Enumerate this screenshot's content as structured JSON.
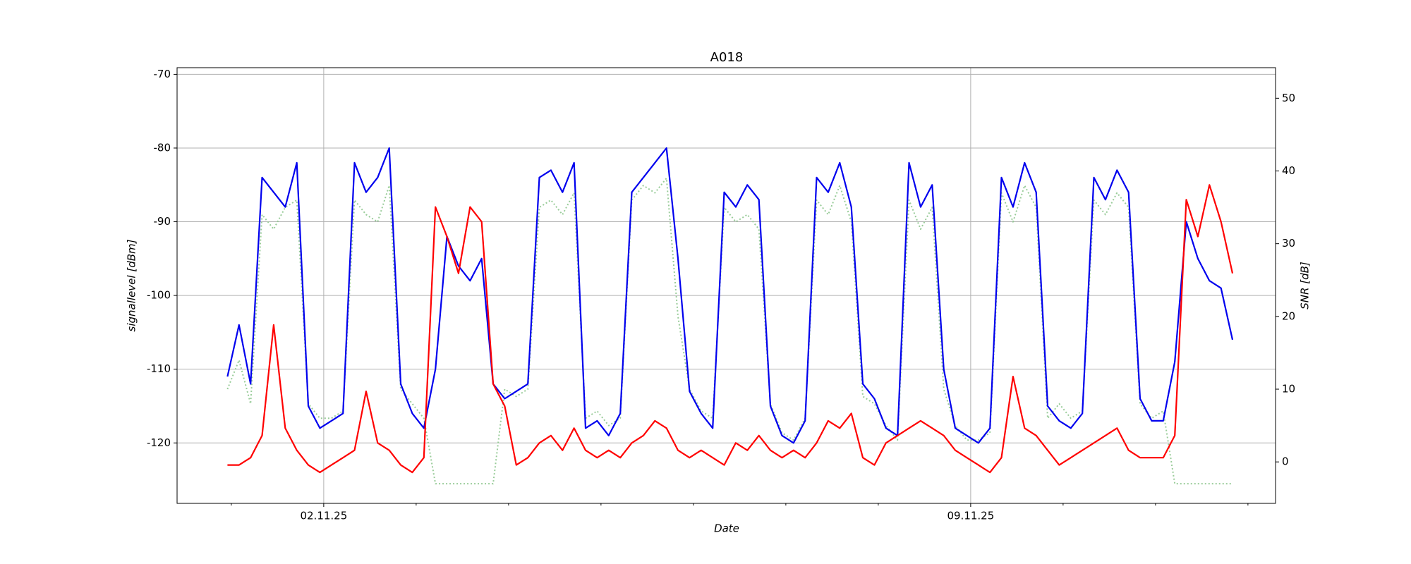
{
  "chart_data": {
    "type": "line",
    "title": "A018",
    "x_label": "Date",
    "y_label": "signallevel [dBm]",
    "y2_label": "SNR [dB]",
    "x": [
      "2025-10-31 23:00",
      "2025-11-01 02:00",
      "2025-11-01 05:00",
      "2025-11-01 08:00",
      "2025-11-01 11:00",
      "2025-11-01 14:00",
      "2025-11-01 17:00",
      "2025-11-01 20:00",
      "2025-11-01 23:00",
      "2025-11-02 02:00",
      "2025-11-02 05:00",
      "2025-11-02 08:00",
      "2025-11-02 11:00",
      "2025-11-02 14:00",
      "2025-11-02 17:00",
      "2025-11-02 20:00",
      "2025-11-02 23:00",
      "2025-11-03 02:00",
      "2025-11-03 05:00",
      "2025-11-03 08:00",
      "2025-11-03 11:00",
      "2025-11-03 14:00",
      "2025-11-03 17:00",
      "2025-11-03 20:00",
      "2025-11-03 23:00",
      "2025-11-04 02:00",
      "2025-11-04 05:00",
      "2025-11-04 08:00",
      "2025-11-04 11:00",
      "2025-11-04 14:00",
      "2025-11-04 17:00",
      "2025-11-04 20:00",
      "2025-11-04 23:00",
      "2025-11-05 02:00",
      "2025-11-05 05:00",
      "2025-11-05 08:00",
      "2025-11-05 11:00",
      "2025-11-05 14:00",
      "2025-11-05 17:00",
      "2025-11-05 20:00",
      "2025-11-05 23:00",
      "2025-11-06 02:00",
      "2025-11-06 05:00",
      "2025-11-06 08:00",
      "2025-11-06 11:00",
      "2025-11-06 14:00",
      "2025-11-06 17:00",
      "2025-11-06 20:00",
      "2025-11-06 23:00",
      "2025-11-07 02:00",
      "2025-11-07 05:00",
      "2025-11-07 08:00",
      "2025-11-07 11:00",
      "2025-11-07 14:00",
      "2025-11-07 17:00",
      "2025-11-07 20:00",
      "2025-11-07 23:00",
      "2025-11-08 02:00",
      "2025-11-08 05:00",
      "2025-11-08 08:00",
      "2025-11-08 11:00",
      "2025-11-08 14:00",
      "2025-11-08 17:00",
      "2025-11-08 20:00",
      "2025-11-08 23:00",
      "2025-11-09 02:00",
      "2025-11-09 05:00",
      "2025-11-09 08:00",
      "2025-11-09 11:00",
      "2025-11-09 14:00",
      "2025-11-09 17:00",
      "2025-11-09 20:00",
      "2025-11-09 23:00",
      "2025-11-10 02:00",
      "2025-11-10 05:00",
      "2025-11-10 08:00",
      "2025-11-10 11:00",
      "2025-11-10 14:00",
      "2025-11-10 17:00",
      "2025-11-10 20:00",
      "2025-11-10 23:00",
      "2025-11-11 02:00",
      "2025-11-11 05:00",
      "2025-11-11 08:00",
      "2025-11-11 11:00",
      "2025-11-11 14:00",
      "2025-11-11 17:00",
      "2025-11-11 20:00"
    ],
    "series": [
      {
        "color": "#99cc99",
        "style": "dotted",
        "axis": "y2",
        "values": [
          10,
          14,
          8,
          34,
          32,
          35,
          36,
          8,
          6,
          6,
          7,
          36,
          34,
          33,
          38,
          10,
          8,
          6,
          -3,
          -3,
          -3,
          -3,
          -3,
          -3,
          10,
          9,
          10,
          35,
          36,
          34,
          37,
          6,
          7,
          5,
          6,
          36,
          38,
          37,
          39,
          20,
          10,
          7,
          6,
          35,
          33,
          34,
          32,
          8,
          4,
          3,
          6,
          36,
          34,
          38,
          33,
          9,
          8,
          5,
          3,
          36,
          32,
          35,
          10,
          5,
          3,
          3,
          4,
          37,
          33,
          38,
          35,
          6,
          8,
          6,
          7,
          36,
          34,
          37,
          35,
          8,
          6,
          7,
          -3,
          -3,
          -3,
          -3,
          -3,
          -3
        ]
      },
      {
        "color": "#0000ee",
        "style": "solid",
        "values": [
          -111,
          -104,
          -112,
          -84,
          -86,
          -88,
          -82,
          -115,
          -118,
          -117,
          -116,
          -82,
          -86,
          -84,
          -80,
          -112,
          -116,
          -118,
          -110,
          -92,
          -96,
          -98,
          -95,
          -112,
          -114,
          -113,
          -112,
          -84,
          -83,
          -86,
          -82,
          -118,
          -117,
          -119,
          -116,
          -86,
          -84,
          -82,
          -80,
          -95,
          -113,
          -116,
          -118,
          -86,
          -88,
          -85,
          -87,
          -115,
          -119,
          -120,
          -117,
          -84,
          -86,
          -82,
          -88,
          -112,
          -114,
          -118,
          -119,
          -82,
          -88,
          -85,
          -110,
          -118,
          -119,
          -120,
          -118,
          -84,
          -88,
          -82,
          -86,
          -115,
          -117,
          -118,
          -116,
          -84,
          -87,
          -83,
          -86,
          -114,
          -117,
          -117,
          -109,
          -90,
          -95,
          -98,
          -99,
          -106
        ]
      },
      {
        "color": "#ff0000",
        "style": "solid",
        "values": [
          -123,
          -123,
          -122,
          -119,
          -104,
          -118,
          -121,
          -123,
          -124,
          -123,
          -122,
          -121,
          -113,
          -120,
          -121,
          -123,
          -124,
          -122,
          -88,
          -92,
          -97,
          -88,
          -90,
          -112,
          -115,
          -123,
          -122,
          -120,
          -119,
          -121,
          -118,
          -121,
          -122,
          -121,
          -122,
          -120,
          -119,
          -117,
          -118,
          -121,
          -122,
          -121,
          -122,
          -123,
          -120,
          -121,
          -119,
          -121,
          -122,
          -121,
          -122,
          -120,
          -117,
          -118,
          -116,
          -122,
          -123,
          -120,
          -119,
          -118,
          -117,
          -118,
          -119,
          -121,
          -122,
          -123,
          -124,
          -122,
          -111,
          -118,
          -119,
          -121,
          -123,
          -122,
          -121,
          -120,
          -119,
          -118,
          -121,
          -122,
          -122,
          -122,
          -119,
          -87,
          -92,
          -85,
          -90,
          -97
        ]
      }
    ],
    "xlim": [
      "2025-10-31 09:55",
      "2025-11-12 07:10"
    ],
    "xticks": [
      {
        "value": "2025-11-02",
        "label": "02.11.25"
      },
      {
        "value": "2025-11-09",
        "label": "09.11.25"
      }
    ],
    "xminorticks": [
      "2025-11-01",
      "2025-11-03",
      "2025-11-04",
      "2025-11-05",
      "2025-11-06",
      "2025-11-07",
      "2025-11-08",
      "2025-11-10",
      "2025-11-11",
      "2025-11-12"
    ],
    "ylim": [
      -128.2,
      -69.1
    ],
    "yticks": [
      -120,
      -110,
      -100,
      -90,
      -80,
      -70
    ],
    "y2lim": [
      -5.7,
      54.2
    ],
    "y2ticks": [
      0,
      10,
      20,
      30,
      40,
      50
    ],
    "grid": true
  }
}
